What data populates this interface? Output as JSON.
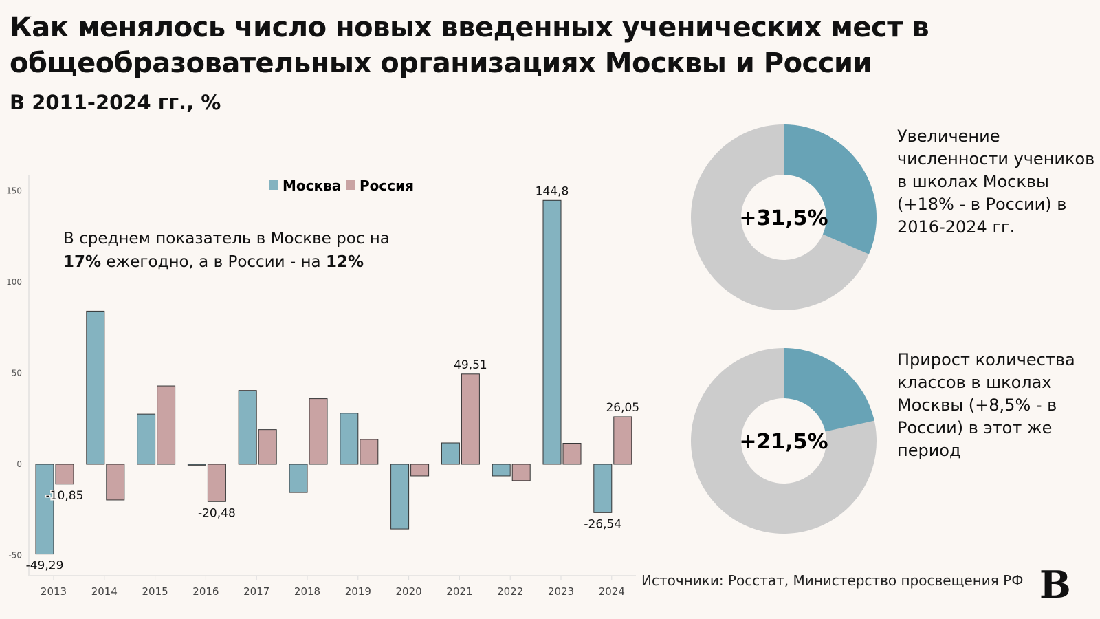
{
  "title": "Как менялось число новых введенных ученических мест в общеобразовательных организациях Москвы и России",
  "subtitle": "В 2011-2024 гг., %",
  "note": {
    "line1": "В среднем показатель в Москве рос на",
    "bold1": "17%",
    "mid": " ежегодно, а в России - на ",
    "bold2": "12%"
  },
  "source": "Источники: Росстат, Министерство просвещения РФ",
  "logo": "В",
  "colors": {
    "moscow": "#84b3c0",
    "russia": "#c9a3a3",
    "donut_accent": "#68a3b6",
    "donut_rest": "#cccccc",
    "background": "#fbf7f3"
  },
  "chart_data": [
    {
      "type": "bar",
      "categories": [
        "2013",
        "2014",
        "2015",
        "2016",
        "2017",
        "2018",
        "2019",
        "2020",
        "2021",
        "2022",
        "2023",
        "2024"
      ],
      "series": [
        {
          "name": "Москва",
          "values": [
            -49.29,
            84,
            27.5,
            -0.5,
            40.5,
            -15.5,
            28,
            -35.5,
            11.7,
            -6.4,
            144.8,
            -26.54
          ]
        },
        {
          "name": "Россия",
          "values": [
            -10.85,
            -19.6,
            43,
            -20.48,
            19,
            36,
            13.6,
            -6.4,
            49.51,
            -9,
            11.5,
            26.05
          ]
        }
      ],
      "data_labels": [
        {
          "category": "2013",
          "series": "Москва",
          "text": "-49,29"
        },
        {
          "category": "2013",
          "series": "Россия",
          "text": "-10,85"
        },
        {
          "category": "2016",
          "series": "Россия",
          "text": "-20,48"
        },
        {
          "category": "2021",
          "series": "Россия",
          "text": "49,51"
        },
        {
          "category": "2023",
          "series": "Москва",
          "text": "144,8"
        },
        {
          "category": "2024",
          "series": "Москва",
          "text": "-26,54"
        },
        {
          "category": "2024",
          "series": "Россия",
          "text": "26,05"
        }
      ],
      "yticks": [
        "-50",
        "0",
        "50",
        "100",
        "150"
      ],
      "ylim": [
        -55,
        160
      ],
      "legend": "top-center",
      "grid": false
    },
    {
      "type": "pie",
      "donut": true,
      "center_label": "+31,5%",
      "values": [
        31.5,
        68.5
      ],
      "caption": "Увеличение численности учеников в школах Москвы (+18% - в России) в 2016-2024 гг."
    },
    {
      "type": "pie",
      "donut": true,
      "center_label": "+21,5%",
      "values": [
        21.5,
        78.5
      ],
      "caption": "Прирост количества классов в школах Москвы (+8,5% - в России) в этот же период"
    }
  ]
}
